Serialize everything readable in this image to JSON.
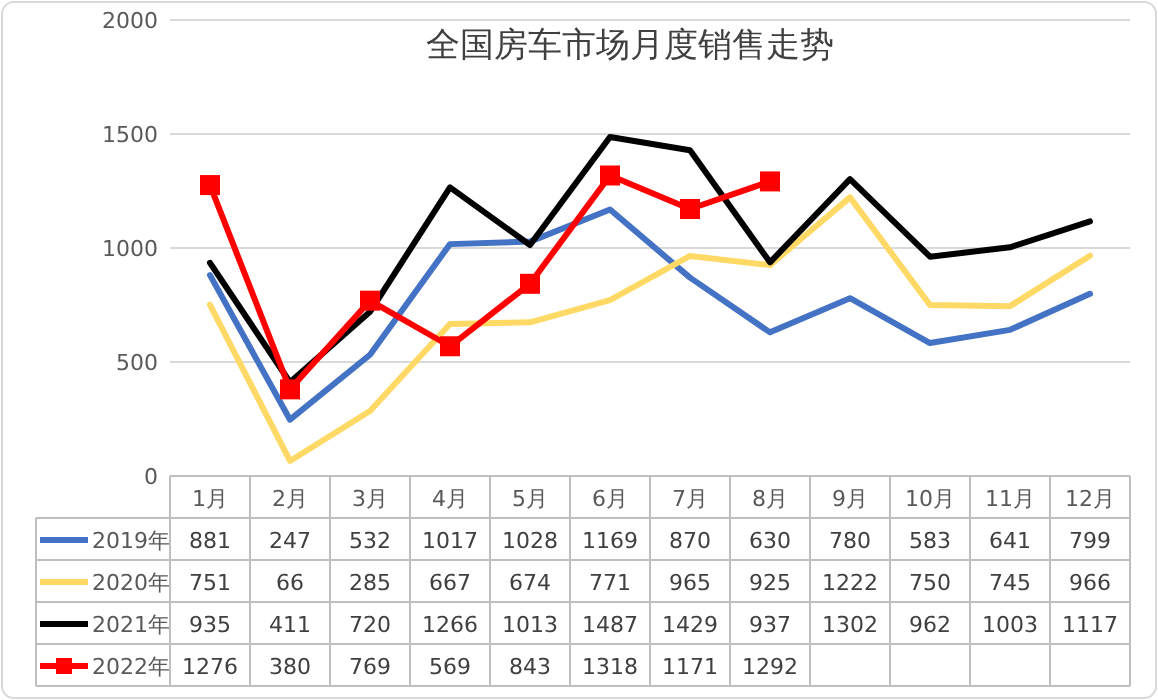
{
  "chart_data": {
    "type": "line",
    "title": "全国房车市场月度销售走势",
    "categories": [
      "1月",
      "2月",
      "3月",
      "4月",
      "5月",
      "6月",
      "7月",
      "8月",
      "9月",
      "10月",
      "11月",
      "12月"
    ],
    "ylim": [
      0,
      2000
    ],
    "yticks": [
      0,
      500,
      1000,
      1500,
      2000
    ],
    "grid": "y",
    "legend": "bottom",
    "data_labels": true,
    "series": [
      {
        "name": "2019年",
        "color": "#4472c4",
        "values": [
          881,
          247,
          532,
          1017,
          1028,
          1169,
          870,
          630,
          780,
          583,
          641,
          799
        ]
      },
      {
        "name": "2020年",
        "color": "#ffd966",
        "values": [
          751,
          66,
          285,
          667,
          674,
          771,
          965,
          925,
          1222,
          750,
          745,
          966
        ]
      },
      {
        "name": "2021年",
        "color": "#000000",
        "values": [
          935,
          411,
          720,
          1266,
          1013,
          1487,
          1429,
          937,
          1302,
          962,
          1003,
          1117
        ]
      },
      {
        "name": "2022年",
        "color": "#ff0000",
        "marker": "square",
        "values": [
          1276,
          380,
          769,
          569,
          843,
          1318,
          1171,
          1292,
          null,
          null,
          null,
          null
        ]
      }
    ]
  }
}
